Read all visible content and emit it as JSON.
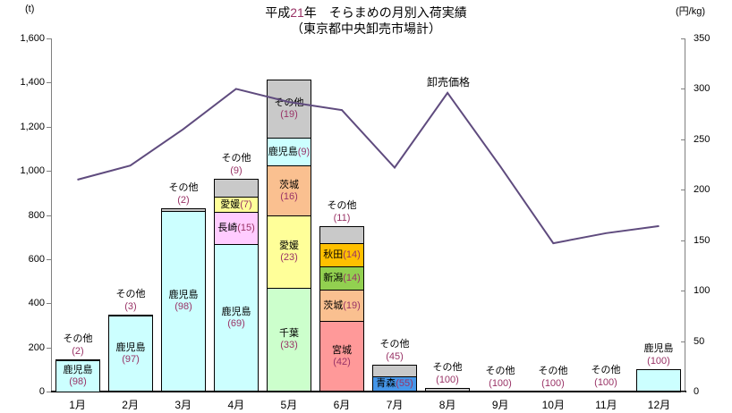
{
  "chart_data": {
    "type": "stacked-bar+line",
    "title": {
      "prefix": "平成",
      "year": "21",
      "suffix": "年　そらまめの月別入荷実績",
      "line2": "（東京都中央卸売市場計）"
    },
    "categories": [
      "1月",
      "2月",
      "3月",
      "4月",
      "5月",
      "6月",
      "7月",
      "8月",
      "9月",
      "10月",
      "11月",
      "12月"
    ],
    "left_axis": {
      "unit": "(t)",
      "min": 0,
      "max": 1600,
      "step": 200
    },
    "right_axis": {
      "unit": "(円/kg)",
      "min": 0,
      "max": 350,
      "step": 50
    },
    "bars": {
      "unit": "t",
      "totals_t": [
        145,
        350,
        830,
        965,
        1415,
        750,
        120,
        15,
        1,
        1,
        5,
        100
      ],
      "stacks": [
        [
          {
            "name": "鹿児島",
            "pct": 98,
            "label": "inside-stacked"
          },
          {
            "name": "その他",
            "pct": 2,
            "label": "above"
          }
        ],
        [
          {
            "name": "鹿児島",
            "pct": 97,
            "label": "inside-stacked"
          },
          {
            "name": "その他",
            "pct": 3,
            "label": "above"
          }
        ],
        [
          {
            "name": "鹿児島",
            "pct": 98,
            "label": "inside-stacked"
          },
          {
            "name": "その他",
            "pct": 2,
            "label": "above"
          }
        ],
        [
          {
            "name": "鹿児島",
            "pct": 69,
            "label": "inside-stacked"
          },
          {
            "name": "長崎",
            "pct": 15,
            "label": "inside-inline"
          },
          {
            "name": "愛媛",
            "pct": 7,
            "label": "inside-inline"
          },
          {
            "name": "その他",
            "pct": 9,
            "label": "above"
          }
        ],
        [
          {
            "name": "千葉",
            "pct": 33,
            "label": "inside-stacked"
          },
          {
            "name": "愛媛",
            "pct": 23,
            "label": "inside-stacked"
          },
          {
            "name": "茨城",
            "pct": 16,
            "label": "inside-stacked"
          },
          {
            "name": "鹿児島",
            "pct": 9,
            "label": "inside-inline"
          },
          {
            "name": "その他",
            "pct": 19,
            "label": "inside-stacked"
          }
        ],
        [
          {
            "name": "宮城",
            "pct": 42,
            "label": "inside-stacked"
          },
          {
            "name": "茨城",
            "pct": 19,
            "label": "inside-inline"
          },
          {
            "name": "新潟",
            "pct": 14,
            "label": "inside-inline"
          },
          {
            "name": "秋田",
            "pct": 14,
            "label": "inside-inline"
          },
          {
            "name": "その他",
            "pct": 11,
            "label": "above"
          }
        ],
        [
          {
            "name": "青森",
            "pct": 55,
            "label": "inside-inline"
          },
          {
            "name": "その他",
            "pct": 45,
            "label": "above"
          }
        ],
        [
          {
            "name": "その他",
            "pct": 100,
            "label": "above"
          }
        ],
        [
          {
            "name": "その他",
            "pct": 100,
            "label": "above"
          }
        ],
        [
          {
            "name": "その他",
            "pct": 100,
            "label": "above"
          }
        ],
        [
          {
            "name": "その他",
            "pct": 100,
            "label": "above"
          }
        ],
        [
          {
            "name": "鹿児島",
            "pct": 100,
            "label": "above"
          }
        ]
      ]
    },
    "line": {
      "name": "卸売価格",
      "unit": "円/kg",
      "values": [
        210,
        224,
        260,
        300,
        287,
        279,
        222,
        296,
        223,
        147,
        157,
        164
      ],
      "color": "#5F4B7E"
    },
    "colors": {
      "鹿児島": "#CCFFFF",
      "その他": "#C9C9C9",
      "愛媛": "#FFFF99",
      "長崎": "#FFCCFF",
      "茨城": "#FAC090",
      "千葉": "#CCFFCC",
      "秋田": "#FFC000",
      "新潟": "#92D050",
      "宮城": "#FF9999",
      "青森": "#4596E8",
      "number_text": "#993366",
      "axis": "#808080"
    },
    "grid": "none",
    "legend": "none"
  }
}
